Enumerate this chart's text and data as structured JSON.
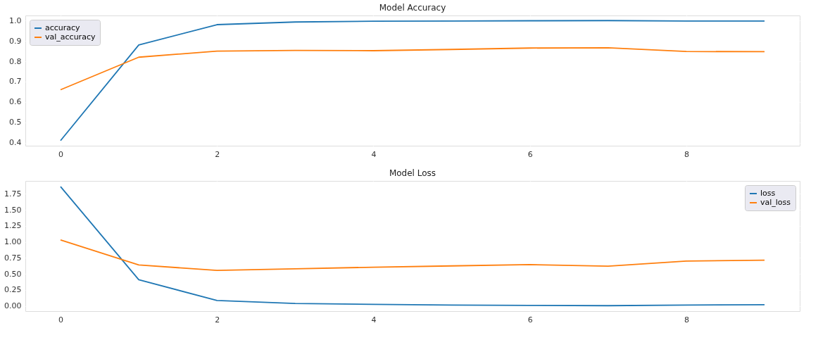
{
  "chart_data": [
    {
      "type": "line",
      "title": "Model Accuracy",
      "x": [
        0,
        1,
        2,
        3,
        4,
        5,
        6,
        7,
        8,
        9
      ],
      "series": [
        {
          "name": "accuracy",
          "color": "#1f77b4",
          "values": [
            0.41,
            0.88,
            0.98,
            0.993,
            0.997,
            0.998,
            0.999,
            1.0,
            0.998,
            0.998
          ]
        },
        {
          "name": "val_accuracy",
          "color": "#ff7f0e",
          "values": [
            0.66,
            0.82,
            0.85,
            0.853,
            0.852,
            0.858,
            0.865,
            0.866,
            0.848,
            0.847
          ]
        }
      ],
      "xlim": [
        -0.45,
        9.45
      ],
      "xticks": [
        0,
        2,
        4,
        6,
        8
      ],
      "ylim": [
        0.385,
        1.025
      ],
      "yticks": [
        0.4,
        0.5,
        0.6,
        0.7,
        0.8,
        0.9,
        {
          "value": 1,
          "label": "1.0"
        }
      ],
      "grid": true,
      "legend": "top left",
      "marker": "none",
      "line_style": "solid"
    },
    {
      "type": "line",
      "title": "Model Loss",
      "x": [
        0,
        1,
        2,
        3,
        4,
        5,
        6,
        7,
        8,
        9
      ],
      "series": [
        {
          "name": "loss",
          "color": "#1f77b4",
          "values": [
            1.86,
            0.41,
            0.085,
            0.04,
            0.025,
            0.015,
            0.01,
            0.005,
            0.015,
            0.02
          ]
        },
        {
          "name": "val_loss",
          "color": "#ff7f0e",
          "values": [
            1.03,
            0.64,
            0.555,
            0.58,
            0.605,
            0.625,
            0.645,
            0.62,
            0.7,
            0.715
          ]
        }
      ],
      "xlim": [
        -0.45,
        9.45
      ],
      "xticks": [
        0,
        2,
        4,
        6,
        8
      ],
      "ylim": [
        -0.08,
        1.95
      ],
      "yticks": [
        {
          "value": 0,
          "label": "0.00"
        },
        0.25,
        {
          "value": 0.5,
          "label": "0.50"
        },
        0.75,
        {
          "value": 1,
          "label": "1.00"
        },
        1.25,
        {
          "value": 1.5,
          "label": "1.50"
        },
        1.75
      ],
      "grid": true,
      "legend": "top right",
      "marker": "none",
      "line_style": "solid"
    }
  ]
}
